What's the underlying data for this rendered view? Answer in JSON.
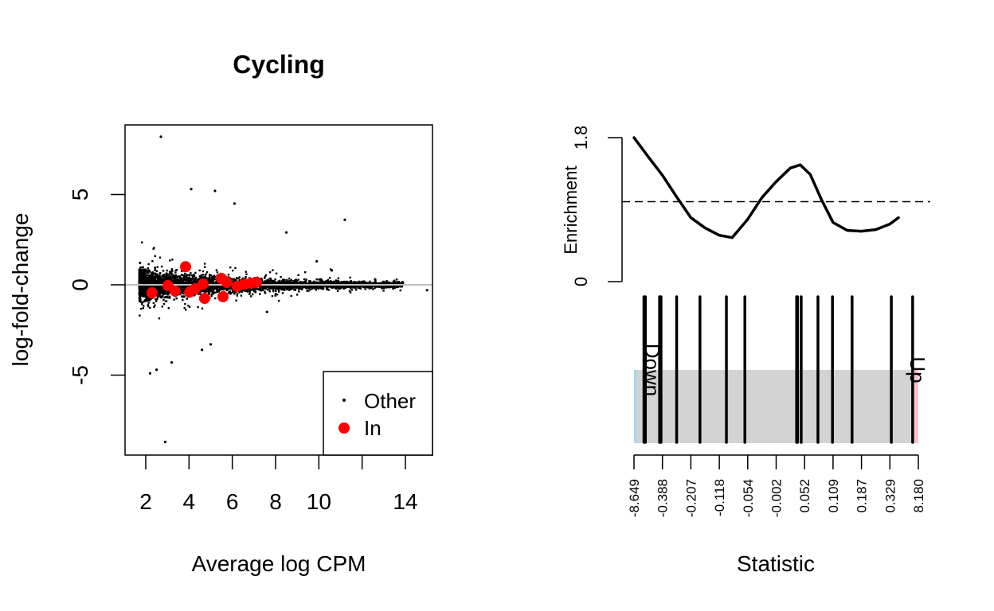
{
  "chart_data": [
    {
      "type": "scatter",
      "title": "Cycling",
      "xlabel": "Average log CPM",
      "ylabel": "log-fold-change",
      "xlim": [
        1,
        15.2
      ],
      "ylim": [
        -9.1,
        9.0
      ],
      "xticks": [
        2,
        4,
        6,
        8,
        10,
        12,
        14
      ],
      "xtick_labels": [
        "2",
        "4",
        "6",
        "8",
        "10",
        "",
        "14"
      ],
      "yticks": [
        5,
        0,
        -5
      ],
      "ytick_labels": [
        "5",
        "0",
        "-5"
      ],
      "hline": 0,
      "hline_color": "#bebebe",
      "legend": {
        "position": "bottom-right",
        "entries": [
          {
            "label": "Other",
            "color": "#000000",
            "marker": "small-dot"
          },
          {
            "label": "In",
            "color": "#ff0000",
            "marker": "large-dot"
          }
        ]
      },
      "series": [
        {
          "name": "In",
          "color": "#ff0000",
          "points": [
            [
              2.29,
              -0.44
            ],
            [
              3.84,
              1.0
            ],
            [
              3.03,
              -0.04
            ],
            [
              3.36,
              -0.35
            ],
            [
              4.03,
              -0.4
            ],
            [
              4.28,
              -0.22
            ],
            [
              4.65,
              0.04
            ],
            [
              4.72,
              -0.75
            ],
            [
              5.5,
              0.35
            ],
            [
              5.57,
              -0.66
            ],
            [
              5.75,
              0.13
            ],
            [
              6.23,
              -0.09
            ],
            [
              6.56,
              0.04
            ],
            [
              6.86,
              0.09
            ],
            [
              7.12,
              0.13
            ]
          ]
        },
        {
          "name": "Other",
          "color": "#000000",
          "description": "dense cloud of several thousand genes centered on 0, spread widest at low CPM (x 1.7–8) and narrowing toward x 14",
          "outliers": [
            [
              2.7,
              8.2
            ],
            [
              4.1,
              5.3
            ],
            [
              5.2,
              5.2
            ],
            [
              11.2,
              3.6
            ],
            [
              6.1,
              4.5
            ],
            [
              2.9,
              -8.7
            ],
            [
              2.2,
              -4.9
            ],
            [
              2.5,
              -4.7
            ],
            [
              3.2,
              -4.3
            ],
            [
              8.5,
              2.9
            ],
            [
              15.0,
              -0.3
            ],
            [
              13.5,
              0.1
            ],
            [
              9.9,
              1.3
            ],
            [
              10.6,
              0.8
            ],
            [
              12.6,
              0.3
            ],
            [
              7.6,
              -1.5
            ],
            [
              4.6,
              -3.6
            ],
            [
              5.0,
              -3.3
            ]
          ]
        }
      ]
    },
    {
      "type": "barcode",
      "xlabel": "Statistic",
      "ylabel": "Enrichment",
      "enrichment_ylim": [
        0,
        1.8
      ],
      "enrichment_yticks": [
        0,
        1.8
      ],
      "enrichment_ytick_labels": [
        "0",
        "1.8"
      ],
      "reference_line": 1.0,
      "enrichment_curve": [
        [
          0.0,
          1.8
        ],
        [
          0.05,
          1.56
        ],
        [
          0.1,
          1.33
        ],
        [
          0.15,
          1.06
        ],
        [
          0.2,
          0.8
        ],
        [
          0.25,
          0.67
        ],
        [
          0.3,
          0.58
        ],
        [
          0.345,
          0.55
        ],
        [
          0.4,
          0.78
        ],
        [
          0.45,
          1.05
        ],
        [
          0.5,
          1.25
        ],
        [
          0.55,
          1.42
        ],
        [
          0.585,
          1.46
        ],
        [
          0.62,
          1.34
        ],
        [
          0.66,
          1.02
        ],
        [
          0.7,
          0.74
        ],
        [
          0.75,
          0.64
        ],
        [
          0.8,
          0.63
        ],
        [
          0.85,
          0.65
        ],
        [
          0.9,
          0.72
        ],
        [
          0.93,
          0.8
        ]
      ],
      "rank_tick_labels": [
        "-8.649",
        "-0.388",
        "-0.207",
        "-0.118",
        "-0.054",
        "-0.002",
        "0.052",
        "0.109",
        "0.187",
        "0.329",
        "8.180"
      ],
      "gene_positions": [
        0.035,
        0.04,
        0.09,
        0.095,
        0.15,
        0.232,
        0.325,
        0.39,
        0.572,
        0.575,
        0.588,
        0.647,
        0.698,
        0.767,
        0.905,
        0.98
      ],
      "down_label": "Down",
      "up_label": "Up",
      "colors": {
        "down": "#add8e6",
        "up": "#ffc0cb",
        "middle": "#d3d3d3"
      }
    }
  ]
}
